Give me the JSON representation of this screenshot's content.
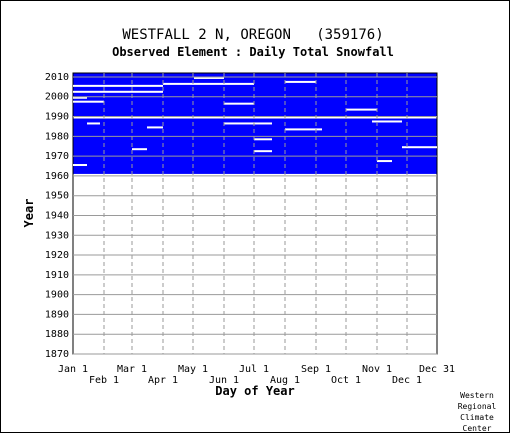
{
  "chart_data": {
    "type": "heatmap",
    "title": "WESTFALL 2 N, OREGON   (359176)",
    "subtitle": "Observed Element : Daily Total Snowfall",
    "xlabel": "Day of Year",
    "ylabel": "Year",
    "x_ticks_upper": [
      "Jan 1",
      "Mar 1",
      "May 1",
      "Jul 1",
      "Sep 1",
      "Nov 1",
      "Dec 31"
    ],
    "x_ticks_upper_days": [
      1,
      60,
      121,
      182,
      244,
      305,
      365
    ],
    "x_ticks_lower": [
      "Feb 1",
      "Apr 1",
      "Jun 1",
      "Aug 1",
      "Oct 1",
      "Dec 1"
    ],
    "x_ticks_lower_days": [
      32,
      91,
      152,
      213,
      274,
      335
    ],
    "y_ticks": [
      "1870",
      "1880",
      "1890",
      "1900",
      "1910",
      "1920",
      "1930",
      "1940",
      "1950",
      "1960",
      "1970",
      "1980",
      "1990",
      "2000",
      "2010"
    ],
    "xlim": [
      1,
      365
    ],
    "ylim": [
      1870,
      2012
    ],
    "grid": true,
    "data_color": "#0000ff",
    "data_blocks": [
      {
        "from_year": 1961,
        "to_year": 1988,
        "from_day": 1,
        "to_day": 365
      },
      {
        "from_year": 1990,
        "to_year": 2011,
        "from_day": 1,
        "to_day": 365
      }
    ],
    "missing_gaps": [
      {
        "year": 1965,
        "from_day": 1,
        "to_day": 15
      },
      {
        "year": 1967,
        "from_day": 305,
        "to_day": 320
      },
      {
        "year": 1972,
        "from_day": 182,
        "to_day": 200
      },
      {
        "year": 1973,
        "from_day": 60,
        "to_day": 75
      },
      {
        "year": 1974,
        "from_day": 330,
        "to_day": 365
      },
      {
        "year": 1978,
        "from_day": 182,
        "to_day": 200
      },
      {
        "year": 1983,
        "from_day": 213,
        "to_day": 250
      },
      {
        "year": 1984,
        "from_day": 75,
        "to_day": 91
      },
      {
        "year": 1986,
        "from_day": 15,
        "to_day": 28
      },
      {
        "year": 1986,
        "from_day": 152,
        "to_day": 200
      },
      {
        "year": 1987,
        "from_day": 300,
        "to_day": 330
      },
      {
        "year": 1993,
        "from_day": 274,
        "to_day": 305
      },
      {
        "year": 1996,
        "from_day": 152,
        "to_day": 182
      },
      {
        "year": 1997,
        "from_day": 1,
        "to_day": 32
      },
      {
        "year": 1999,
        "from_day": 1,
        "to_day": 15
      },
      {
        "year": 2002,
        "from_day": 1,
        "to_day": 91
      },
      {
        "year": 2005,
        "from_day": 1,
        "to_day": 91
      },
      {
        "year": 2006,
        "from_day": 91,
        "to_day": 182
      },
      {
        "year": 2007,
        "from_day": 213,
        "to_day": 244
      },
      {
        "year": 2009,
        "from_day": 122,
        "to_day": 152
      }
    ],
    "credit": [
      "Western",
      "Regional",
      "Climate",
      "Center"
    ]
  }
}
